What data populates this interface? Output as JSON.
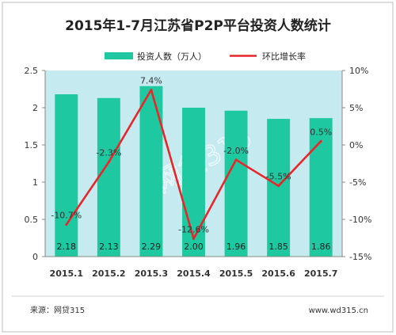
{
  "chart_data": {
    "type": "bar",
    "title": "2015年1-7月江苏省P2P平台投资人数统计",
    "categories": [
      "2015.1",
      "2015.2",
      "2015.3",
      "2015.4",
      "2015.5",
      "2015.6",
      "2015.7"
    ],
    "series": [
      {
        "name": "投资人数（万人）",
        "type": "bar",
        "axis": "left",
        "values": [
          2.18,
          2.13,
          2.29,
          2.0,
          1.96,
          1.85,
          1.86
        ],
        "labels": [
          "2.18",
          "2.13",
          "2.29",
          "2.00",
          "1.96",
          "1.85",
          "1.86"
        ],
        "color": "#1ec8a0"
      },
      {
        "name": "环比增长率",
        "type": "line",
        "axis": "right",
        "values": [
          -10.7,
          -2.3,
          7.4,
          -12.6,
          -2.0,
          -5.5,
          0.5
        ],
        "labels": [
          "-10.7%",
          "-2.3%",
          "7.4%",
          "-12.6%",
          "-2.0%",
          "-5.5%",
          "0.5%"
        ],
        "color": "#e8262a"
      }
    ],
    "y_left": {
      "ylim": [
        0,
        2.5
      ],
      "ticks": [
        "0",
        "0.5",
        "1",
        "1.5",
        "2",
        "2.5"
      ]
    },
    "y_right": {
      "ylim": [
        -15,
        10
      ],
      "ticks": [
        "-15%",
        "-10%",
        "-5%",
        "0%",
        "5%",
        "10%"
      ]
    },
    "grid": false,
    "legend": "top",
    "background_color": "#c5ebf0"
  },
  "watermark": "网贷315",
  "footer": {
    "source": "来源：网贷315",
    "website": "www.wd315.cn"
  }
}
